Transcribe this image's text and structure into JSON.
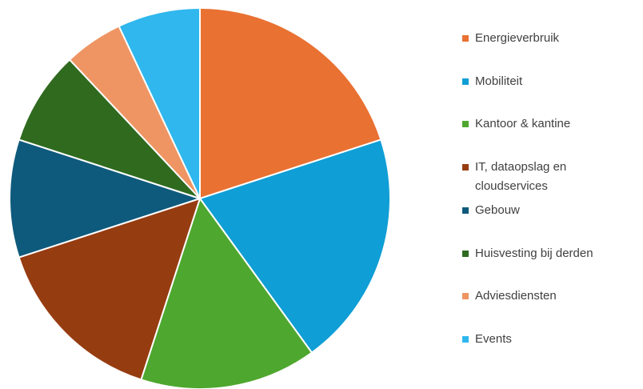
{
  "chart_data": {
    "type": "pie",
    "categories": [
      "Energieverbruik",
      "Mobiliteit",
      "Kantoor & kantine",
      "IT, dataopslag en cloudservices",
      "Gebouw",
      "Huisvesting bij derden",
      "Adviesdiensten",
      "Events"
    ],
    "values": [
      20,
      20,
      15,
      15,
      10,
      8,
      5,
      7
    ],
    "colors": [
      "#e97132",
      "#0f9ed5",
      "#4ea72e",
      "#963c11",
      "#0e5a7c",
      "#2f6a1f",
      "#ef9563",
      "#2fb7ee"
    ],
    "legend": "right"
  }
}
